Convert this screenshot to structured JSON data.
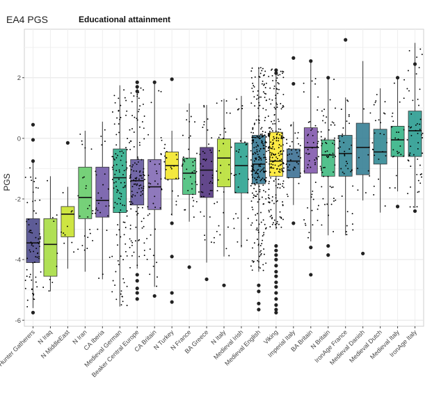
{
  "chart_data": {
    "type": "box",
    "title": "EA4 PGS",
    "subtitle": "Educational attainment",
    "xlabel": "",
    "ylabel": "PGS",
    "ylim": [
      -6.2,
      3.6
    ],
    "yticks": [
      -6,
      -4,
      -2,
      0,
      2
    ],
    "grid": true,
    "legend": "none",
    "categories": [
      "Hunter Gatherers",
      "N Iraq",
      "N MiddleEast",
      "N Iran",
      "CA Iberia",
      "Medieval German",
      "Beaker Central Europe",
      "CA Britain",
      "N Turkey",
      "N France",
      "BA Greece",
      "N Italy",
      "Medieval Irish",
      "Medieval English",
      "Viking",
      "Imperial Italy",
      "BA Britain",
      "N Britain",
      "IronAge France",
      "Medieval Danish",
      "Medieval Dutch",
      "Medieval Italy",
      "IronAge Italy"
    ],
    "series": [
      {
        "name": "Hunter Gatherers",
        "color": "#423f85",
        "n": 70,
        "q1": -4.1,
        "median": -3.45,
        "q3": -2.65,
        "whisker_low": -5.6,
        "whisker_high": -0.7,
        "outliers": [
          0.45,
          -0.05,
          -0.75,
          -5.75
        ]
      },
      {
        "name": "N Iraq",
        "color": "#a2da37",
        "n": 10,
        "q1": -4.55,
        "median": -3.5,
        "q3": -2.65,
        "whisker_low": -5.05,
        "whisker_high": -1.25,
        "outliers": []
      },
      {
        "name": "N MiddleEast",
        "color": "#c5e021",
        "n": 10,
        "q1": -3.25,
        "median": -2.5,
        "q3": -2.25,
        "whisker_low": -4.3,
        "whisker_high": -1.6,
        "outliers": [
          -0.15
        ]
      },
      {
        "name": "N Iran",
        "color": "#5ec962",
        "n": 25,
        "q1": -2.65,
        "median": -1.95,
        "q3": -0.95,
        "whisker_low": -4.4,
        "whisker_high": 0.25,
        "outliers": []
      },
      {
        "name": "CA Iberia",
        "color": "#6a51a3",
        "n": 25,
        "q1": -2.6,
        "median": -2.05,
        "q3": -0.95,
        "whisker_low": -4.65,
        "whisker_high": 0.55,
        "outliers": []
      },
      {
        "name": "Medieval German",
        "color": "#22a884",
        "n": 110,
        "q1": -2.45,
        "median": -1.3,
        "q3": -0.35,
        "whisker_low": -5.55,
        "whisker_high": 1.75,
        "outliers": []
      },
      {
        "name": "Beaker Central Europe",
        "color": "#5b4e99",
        "n": 120,
        "q1": -2.2,
        "median": -1.4,
        "q3": -0.7,
        "whisker_low": -4.3,
        "whisker_high": 1.75,
        "outliers": [
          1.85,
          1.7,
          1.55,
          -4.5,
          -4.7,
          -4.95,
          -5.1,
          -5.3
        ]
      },
      {
        "name": "CA Britain",
        "color": "#7b61b0",
        "n": 40,
        "q1": -2.35,
        "median": -1.6,
        "q3": -0.7,
        "whisker_low": -4.9,
        "whisker_high": 1.8,
        "outliers": [
          1.85,
          -5.2
        ]
      },
      {
        "name": "N Turkey",
        "color": "#f2e51d",
        "n": 22,
        "q1": -1.35,
        "median": -0.9,
        "q3": -0.45,
        "whisker_low": -2.55,
        "whisker_high": 0.25,
        "outliers": [
          1.95,
          -2.8,
          -3.9,
          -5.1,
          -5.4
        ]
      },
      {
        "name": "N France",
        "color": "#3fbc73",
        "n": 40,
        "q1": -1.85,
        "median": -1.15,
        "q3": -0.65,
        "whisker_low": -2.75,
        "whisker_high": 1.15,
        "outliers": [
          -4.25
        ]
      },
      {
        "name": "BA Greece",
        "color": "#482878",
        "n": 45,
        "q1": -1.95,
        "median": -1.05,
        "q3": -0.3,
        "whisker_low": -4.1,
        "whisker_high": 1.1,
        "outliers": [
          -4.65
        ]
      },
      {
        "name": "N Italy",
        "color": "#b5de2b",
        "n": 30,
        "q1": -1.6,
        "median": -0.65,
        "q3": -0.02,
        "whisker_low": -3.9,
        "whisker_high": 1.3,
        "outliers": [
          -4.85
        ]
      },
      {
        "name": "Medieval Irish",
        "color": "#1f9e89",
        "n": 30,
        "q1": -1.8,
        "median": -0.9,
        "q3": -0.15,
        "whisker_low": -3.6,
        "whisker_high": 1.4,
        "outliers": []
      },
      {
        "name": "Medieval English",
        "color": "#2c728e",
        "n": 260,
        "q1": -1.5,
        "median": -0.85,
        "q3": 0.1,
        "whisker_low": -4.4,
        "whisker_high": 2.35,
        "outliers": [
          -4.85,
          -5.05,
          -5.45,
          -5.65
        ]
      },
      {
        "name": "Viking",
        "color": "#fde725",
        "n": 210,
        "q1": -1.25,
        "median": -0.75,
        "q3": 0.2,
        "whisker_low": -3.0,
        "whisker_high": 2.3,
        "outliers": [
          2.25,
          2.15,
          -3.55,
          -3.7,
          -3.85,
          -4.0,
          -4.2,
          -4.4,
          -4.55,
          -4.75,
          -4.9,
          -5.1,
          -5.3,
          -5.5,
          -5.65,
          -5.75
        ]
      },
      {
        "name": "Imperial Italy",
        "color": "#31688e",
        "n": 40,
        "q1": -1.3,
        "median": -0.75,
        "q3": -0.35,
        "whisker_low": -2.2,
        "whisker_high": 0.55,
        "outliers": [
          2.65,
          1.8,
          -2.8
        ]
      },
      {
        "name": "BA Britain",
        "color": "#7a4fa8",
        "n": 55,
        "q1": -1.15,
        "median": -0.3,
        "q3": 0.35,
        "whisker_low": -3.4,
        "whisker_high": 2.5,
        "outliers": [
          2.55,
          -3.6,
          -4.5
        ]
      },
      {
        "name": "N Britain",
        "color": "#35b779",
        "n": 60,
        "q1": -1.25,
        "median": -0.55,
        "q3": -0.05,
        "whisker_low": -3.2,
        "whisker_high": 1.95,
        "outliers": [
          2.0,
          -3.55,
          -3.85
        ]
      },
      {
        "name": "IronAge France",
        "color": "#277f8e",
        "n": 40,
        "q1": -1.25,
        "median": -0.5,
        "q3": 0.1,
        "whisker_low": -3.2,
        "whisker_high": 1.35,
        "outliers": [
          3.25
        ]
      },
      {
        "name": "Medieval Danish",
        "color": "#2a788e",
        "n": 10,
        "q1": -1.2,
        "median": -0.3,
        "q3": 0.5,
        "whisker_low": -2.05,
        "whisker_high": 2.55,
        "outliers": [
          -3.8
        ]
      },
      {
        "name": "Medieval Dutch",
        "color": "#26828e",
        "n": 25,
        "q1": -0.85,
        "median": -0.45,
        "q3": 0.3,
        "whisker_low": -2.45,
        "whisker_high": 1.65,
        "outliers": []
      },
      {
        "name": "Medieval Italy",
        "color": "#29af7f",
        "n": 25,
        "q1": -0.6,
        "median": -0.05,
        "q3": 0.4,
        "whisker_low": -1.75,
        "whisker_high": 1.95,
        "outliers": [
          2.0,
          -2.25
        ]
      },
      {
        "name": "IronAge Italy",
        "color": "#1f968b",
        "n": 55,
        "q1": -0.6,
        "median": 0.25,
        "q3": 0.9,
        "whisker_low": -2.3,
        "whisker_high": 3.15,
        "outliers": [
          2.45,
          -2.4
        ]
      }
    ]
  }
}
